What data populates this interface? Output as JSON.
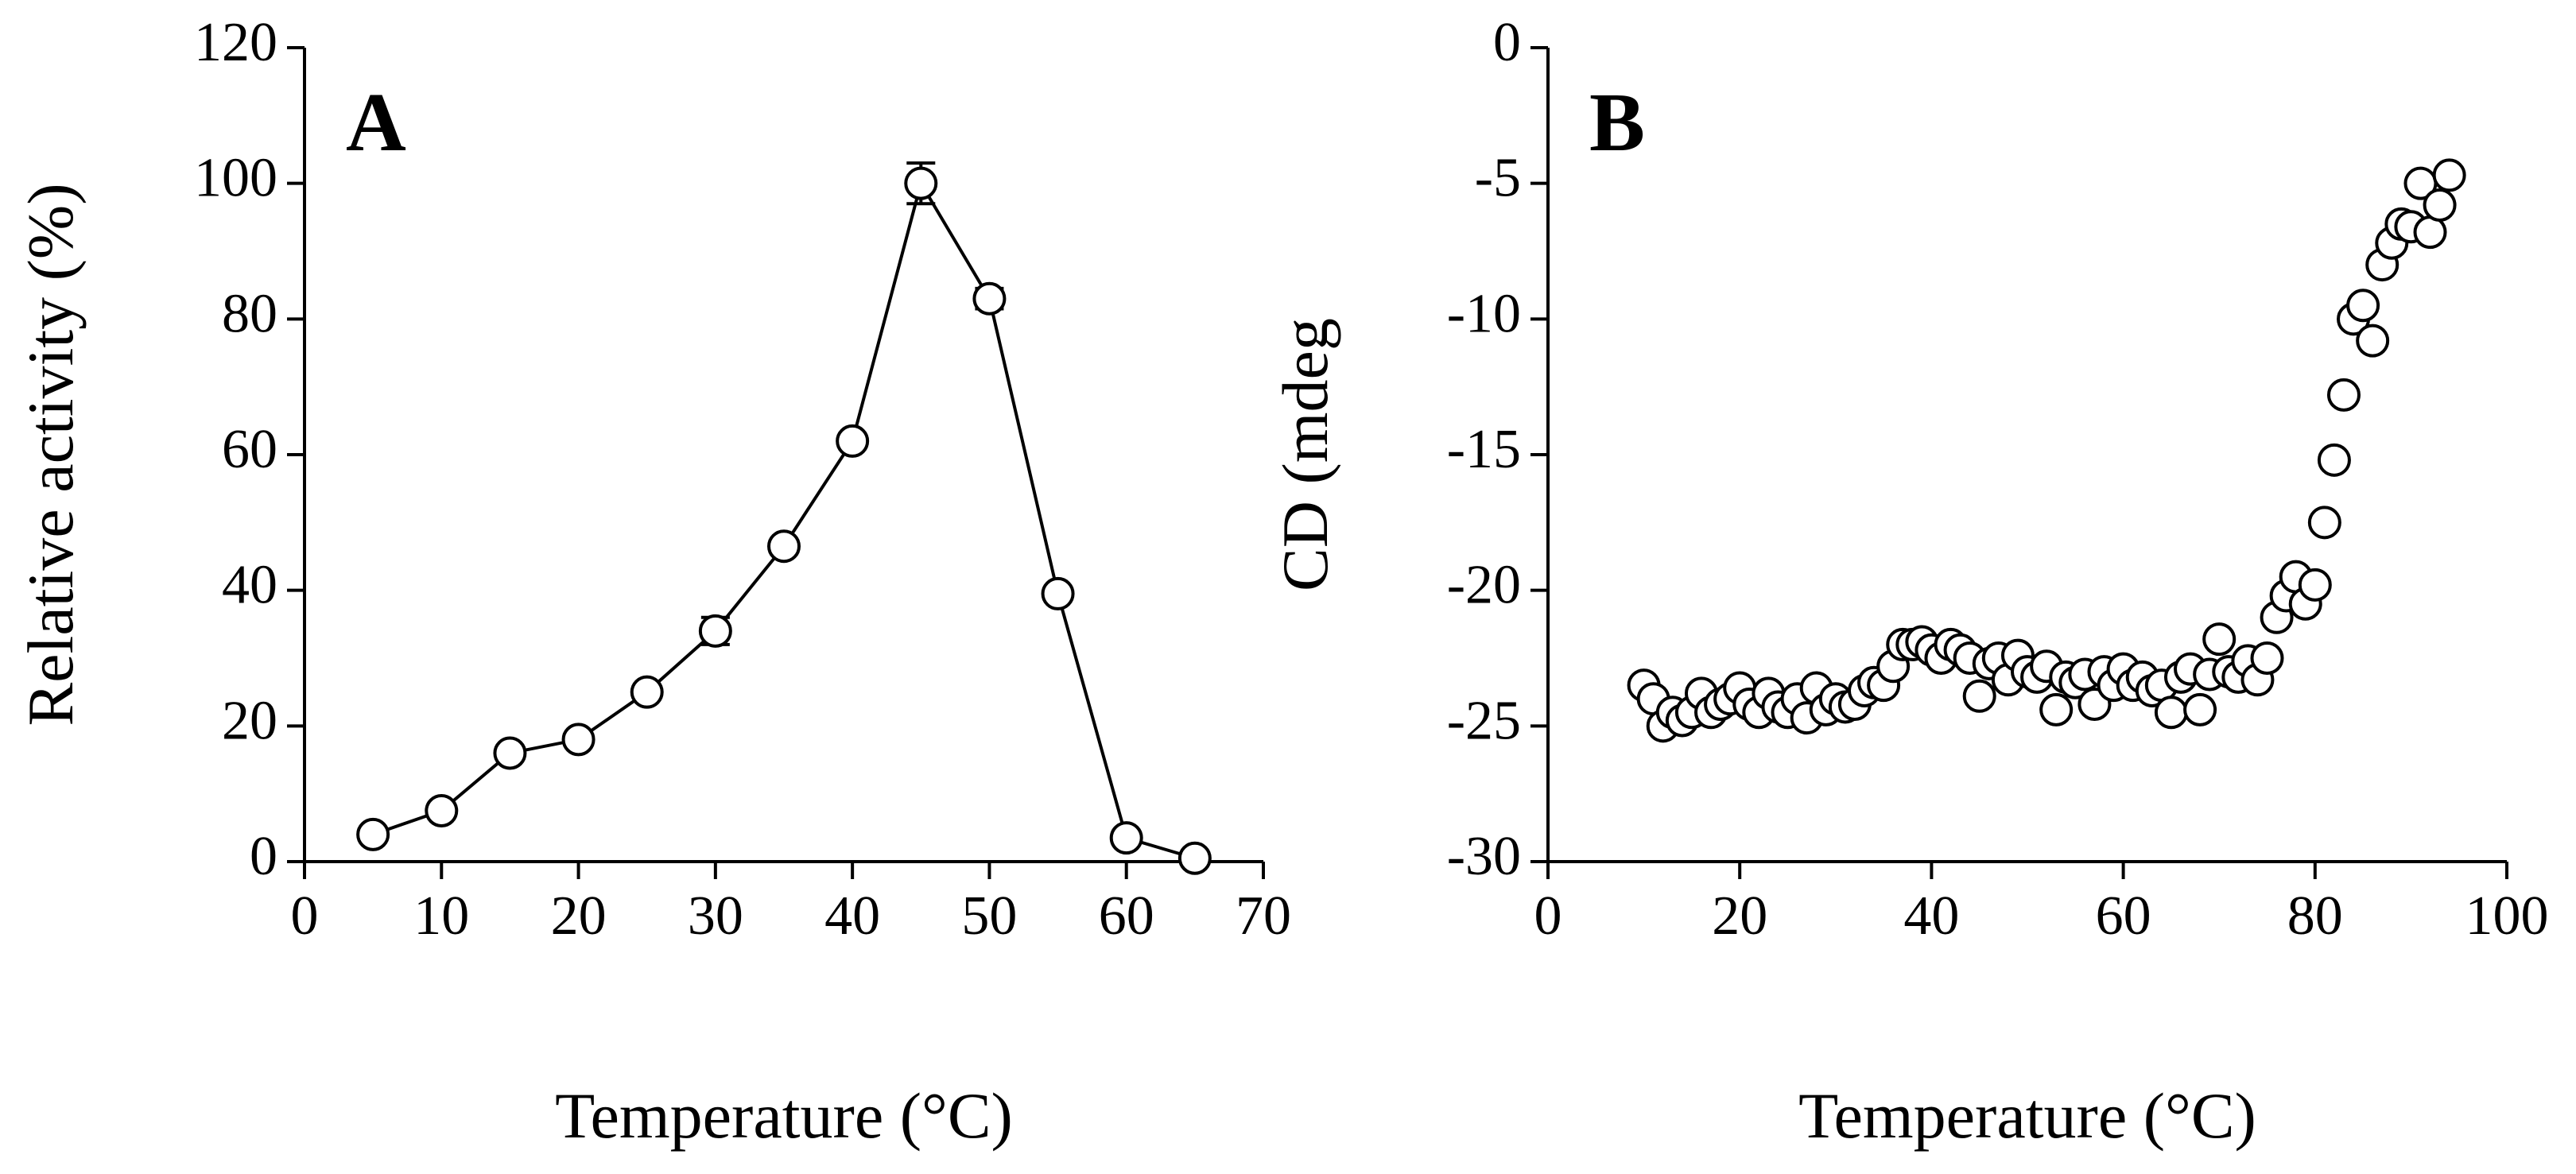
{
  "chart_data": [
    {
      "type": "line",
      "panel_label": "A",
      "xlabel": "Temperature (°C)",
      "ylabel": "Relative activity (%)",
      "x": [
        5,
        10,
        15,
        20,
        25,
        30,
        35,
        40,
        45,
        50,
        55,
        60,
        65
      ],
      "values": [
        4,
        7.5,
        16,
        18,
        25,
        34,
        46.5,
        62,
        100,
        83,
        39.5,
        3.5,
        0.5
      ],
      "errors": [
        0.5,
        1,
        1,
        1,
        1,
        2,
        1,
        1,
        3,
        1.5,
        1,
        0.5,
        0.5
      ],
      "color": "#000000",
      "marker_fill": "#ffffff",
      "xlim": [
        0,
        70
      ],
      "xticks": [
        0,
        10,
        20,
        30,
        40,
        50,
        60,
        70
      ],
      "ylim": [
        0,
        120
      ],
      "yticks": [
        0,
        20,
        40,
        60,
        80,
        100,
        120
      ]
    },
    {
      "type": "scatter",
      "panel_label": "B",
      "xlabel": "Temperature (°C)",
      "ylabel": "CD (mdeg",
      "x": [
        10,
        11,
        12,
        13,
        14,
        15,
        16,
        17,
        18,
        19,
        20,
        21,
        22,
        23,
        24,
        25,
        26,
        27,
        28,
        29,
        30,
        31,
        32,
        33,
        34,
        35,
        36,
        37,
        38,
        39,
        40,
        41,
        42,
        43,
        44,
        45,
        46,
        47,
        48,
        49,
        50,
        51,
        52,
        53,
        54,
        55,
        56,
        57,
        58,
        59,
        60,
        61,
        62,
        63,
        64,
        65,
        66,
        67,
        68,
        69,
        70,
        71,
        72,
        73,
        74,
        75,
        76,
        77,
        78,
        79,
        80,
        81,
        82,
        83,
        84,
        85,
        86,
        87,
        88,
        89,
        90,
        91,
        92,
        93,
        94
      ],
      "values": [
        -23.5,
        -24,
        -25,
        -24.5,
        -24.8,
        -24.5,
        -23.8,
        -24.5,
        -24.2,
        -24,
        -23.6,
        -24.2,
        -24.5,
        -23.8,
        -24.3,
        -24.5,
        -24,
        -24.7,
        -23.6,
        -24.4,
        -24,
        -24.3,
        -24.2,
        -23.7,
        -23.4,
        -23.5,
        -22.8,
        -22,
        -22,
        -21.9,
        -22.2,
        -22.5,
        -22,
        -22.2,
        -22.5,
        -23.9,
        -22.7,
        -22.5,
        -23.3,
        -22.4,
        -23,
        -23.2,
        -22.8,
        -24.4,
        -23.2,
        -23.4,
        -23.1,
        -24.2,
        -23,
        -23.5,
        -22.9,
        -23.5,
        -23.2,
        -23.7,
        -23.5,
        -24.5,
        -23.2,
        -22.9,
        -24.4,
        -23.1,
        -21.8,
        -23,
        -23.2,
        -22.6,
        -23.3,
        -22.5,
        -21,
        -20.2,
        -19.5,
        -20.5,
        -19.8,
        -17.5,
        -15.2,
        -12.8,
        -10,
        -9.5,
        -10.8,
        -8,
        -7.2,
        -6.5,
        -6.6,
        -5,
        -6.8,
        -5.8,
        -4.7
      ],
      "color": "#000000",
      "marker_fill": "#ffffff",
      "xlim": [
        0,
        100
      ],
      "xticks": [
        0,
        20,
        40,
        60,
        80,
        100
      ],
      "ylim": [
        -30,
        0
      ],
      "yticks": [
        -30,
        -25,
        -20,
        -15,
        -10,
        -5,
        0
      ]
    }
  ]
}
